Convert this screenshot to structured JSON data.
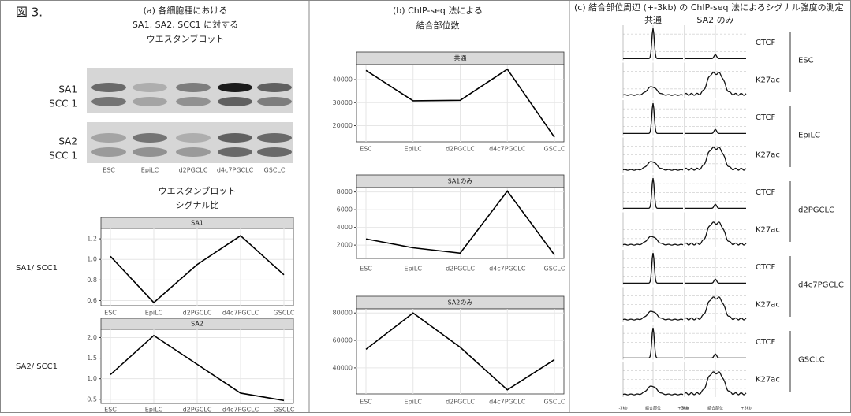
{
  "figure_label": "図 3.",
  "panel_a": {
    "title_lines": [
      "(a) 各細胞種における",
      "SA1, SA2, SCC1 に対する",
      "ウエスタンブロット"
    ],
    "blot_labels": [
      "SA1",
      "SCC 1",
      "SA2",
      "SCC 1"
    ],
    "lanes": [
      "ESC",
      "EpiLC",
      "d2PGCLC",
      "d4c7PGCLC",
      "GSCLC"
    ],
    "ratio_title_lines": [
      "ウエスタンブロット",
      "シグナル比"
    ]
  },
  "panel_b": {
    "title_lines": [
      "(b) ChIP-seq 法による",
      "結合部位数"
    ]
  },
  "panel_c": {
    "title": "(c) 結合部位周辺 (+-3kb) の ChIP-seq 法によるシグナル強度の測定",
    "columns": [
      "共通",
      "SA2 のみ"
    ],
    "marks": [
      "CTCF",
      "K27ac"
    ],
    "groups": [
      "ESC",
      "EpiLC",
      "d2PGCLC",
      "d4c7PGCLC",
      "GSCLC"
    ],
    "x_labels": [
      "-3kb",
      "結合部位",
      "+3kb"
    ]
  },
  "chart_data": [
    {
      "type": "line",
      "title": "SA1",
      "y_label": "SA1/ SCC1",
      "categories": [
        "ESC",
        "EpiLC",
        "d2PGCLC",
        "d4c7PGCLC",
        "GSCLC"
      ],
      "values": [
        1.03,
        0.58,
        0.95,
        1.23,
        0.85
      ],
      "color": "#000000",
      "ylim": [
        0.55,
        1.3
      ],
      "yticks": [
        0.6,
        0.8,
        {
          "value": 1,
          "label": "1.0"
        },
        1.2
      ],
      "grid": true
    },
    {
      "type": "line",
      "title": "SA2",
      "y_label": "SA2/ SCC1",
      "categories": [
        "ESC",
        "EpiLC",
        "d2PGCLC",
        "d4c7PGCLC",
        "GSCLC"
      ],
      "values": [
        1.1,
        2.05,
        1.35,
        0.65,
        0.47
      ],
      "color": "#000000",
      "ylim": [
        0.4,
        2.2
      ],
      "yticks": [
        0.5,
        {
          "value": 1,
          "label": "1.0"
        },
        1.5,
        {
          "value": 2,
          "label": "2.0"
        }
      ],
      "grid": true
    },
    {
      "type": "line",
      "title": "共通",
      "categories": [
        "ESC",
        "EpiLC",
        "d2PGCLC",
        "d4c7PGCLC",
        "GSCLC"
      ],
      "values": [
        44000,
        30800,
        31000,
        44500,
        15000
      ],
      "color": "#000000",
      "ylim": [
        13000,
        46500
      ],
      "yticks": [
        20000,
        30000,
        40000
      ],
      "grid": true
    },
    {
      "type": "line",
      "title": "SA1のみ",
      "categories": [
        "ESC",
        "EpiLC",
        "d2PGCLC",
        "d4c7PGCLC",
        "GSCLC"
      ],
      "values": [
        2700,
        1700,
        1100,
        8100,
        900
      ],
      "color": "#000000",
      "ylim": [
        500,
        8500
      ],
      "yticks": [
        2000,
        4000,
        6000,
        8000
      ],
      "grid": true
    },
    {
      "type": "line",
      "title": "SA2のみ",
      "categories": [
        "ESC",
        "EpiLC",
        "d2PGCLC",
        "d4c7PGCLC",
        "GSCLC"
      ],
      "values": [
        53500,
        80000,
        55000,
        24000,
        46000
      ],
      "color": "#000000",
      "ylim": [
        21000,
        83000
      ],
      "yticks": [
        40000,
        60000,
        80000
      ],
      "grid": true
    }
  ]
}
